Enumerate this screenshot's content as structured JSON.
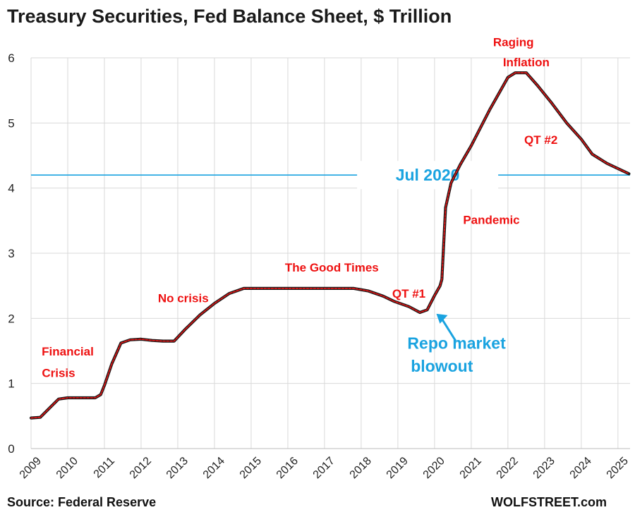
{
  "chart_data": {
    "type": "line",
    "title": "Treasury Securities, Fed Balance Sheet, $ Trillion",
    "xlabel": "",
    "ylabel": "",
    "ylim": [
      0,
      6
    ],
    "xlim": [
      2009,
      2025.33
    ],
    "y_ticks": [
      "0",
      "1",
      "2",
      "3",
      "4",
      "5",
      "6"
    ],
    "x_ticks": [
      "2009",
      "2010",
      "2011",
      "2012",
      "2013",
      "2014",
      "2015",
      "2016",
      "2017",
      "2018",
      "2019",
      "2020",
      "2021",
      "2022",
      "2023",
      "2024",
      "2025"
    ],
    "grid": "horizontal",
    "series": [
      {
        "x": [
          2009.0,
          2009.25,
          2009.5,
          2009.75,
          2010.0,
          2010.5,
          2010.75,
          2010.9,
          2011.0,
          2011.2,
          2011.45,
          2011.7,
          2012.0,
          2012.3,
          2012.6,
          2012.9,
          2013.2,
          2013.6,
          2014.0,
          2014.4,
          2014.8,
          2015.0,
          2016.0,
          2017.0,
          2017.8,
          2018.2,
          2018.6,
          2018.9,
          2019.3,
          2019.6,
          2019.8,
          2020.0,
          2020.15,
          2020.2,
          2020.3,
          2020.45,
          2020.7,
          2021.0,
          2021.5,
          2021.8,
          2022.0,
          2022.2,
          2022.5,
          2022.8,
          2023.2,
          2023.6,
          2024.0,
          2024.3,
          2024.7,
          2025.0,
          2025.3
        ],
        "values": [
          0.47,
          0.48,
          0.62,
          0.76,
          0.78,
          0.78,
          0.78,
          0.83,
          0.97,
          1.3,
          1.62,
          1.67,
          1.68,
          1.66,
          1.65,
          1.65,
          1.83,
          2.05,
          2.23,
          2.38,
          2.46,
          2.46,
          2.46,
          2.46,
          2.46,
          2.42,
          2.34,
          2.26,
          2.18,
          2.09,
          2.13,
          2.35,
          2.5,
          2.6,
          3.7,
          4.08,
          4.36,
          4.65,
          5.2,
          5.5,
          5.7,
          5.77,
          5.77,
          5.58,
          5.3,
          5.0,
          4.75,
          4.52,
          4.38,
          4.3,
          4.22
        ],
        "color": "#e01414"
      }
    ],
    "reference_line": {
      "y": 4.2,
      "label": "Jul 2020",
      "color": "#1aa3e0"
    },
    "annotations": [
      {
        "text": "Financial",
        "x": 2010.0,
        "y": 1.43,
        "color": "#ee1111"
      },
      {
        "text": "Crisis",
        "x": 2009.75,
        "y": 1.1,
        "color": "#ee1111"
      },
      {
        "text": "No crisis",
        "x": 2013.15,
        "y": 2.25,
        "color": "#ee1111"
      },
      {
        "text": "The Good Times",
        "x": 2017.2,
        "y": 2.72,
        "color": "#ee1111"
      },
      {
        "text": "QT #1",
        "x": 2019.3,
        "y": 2.32,
        "color": "#ee1111"
      },
      {
        "text": "Pandemic",
        "x": 2021.55,
        "y": 3.45,
        "color": "#ee1111"
      },
      {
        "text": "Raging",
        "x": 2022.15,
        "y": 6.18,
        "color": "#ee1111"
      },
      {
        "text": "Inflation",
        "x": 2022.5,
        "y": 5.87,
        "color": "#ee1111"
      },
      {
        "text": "QT #2",
        "x": 2022.9,
        "y": 4.68,
        "color": "#ee1111"
      },
      {
        "text": "Repo market",
        "x": 2020.6,
        "y": 1.53,
        "color": "#1aa3e0"
      },
      {
        "text": "blowout",
        "x": 2020.2,
        "y": 1.18,
        "color": "#1aa3e0"
      }
    ]
  },
  "footer": {
    "source": "Source: Federal Reserve",
    "brand": "WOLFSTREET.com"
  }
}
